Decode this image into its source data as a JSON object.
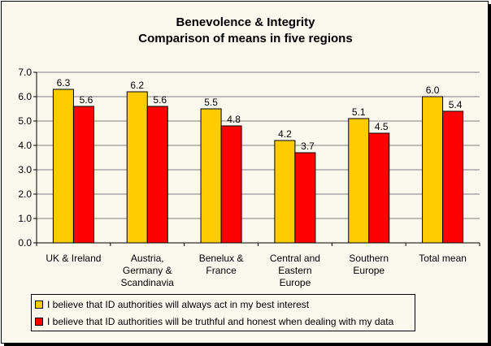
{
  "chart_data": {
    "type": "bar",
    "title_line1": "Benevolence & Integrity",
    "title_line2": "Comparison of means in five regions",
    "categories": [
      [
        "UK & Ireland"
      ],
      [
        "Austria,",
        "Germany &",
        "Scandinavia"
      ],
      [
        "Benelux &",
        "France"
      ],
      [
        "Central and",
        "Eastern",
        "Europe"
      ],
      [
        "Southern",
        "Europe"
      ],
      [
        "Total mean"
      ]
    ],
    "series": [
      {
        "name": "I believe that ID authorities will always act in my best interest",
        "color": "#ffcc00",
        "values": [
          6.3,
          6.2,
          5.5,
          4.2,
          5.1,
          6.0
        ],
        "labels": [
          "6.3",
          "6.2",
          "5.5",
          "4.2",
          "5.1",
          "6.0"
        ]
      },
      {
        "name": "I believe that ID authorities will be truthful and honest when dealing with my data",
        "color": "#ff0000",
        "values": [
          5.6,
          5.6,
          4.8,
          3.7,
          4.5,
          5.4
        ],
        "labels": [
          "5.6",
          "5.6",
          "4.8",
          "3.7",
          "4.5",
          "5.4"
        ]
      }
    ],
    "ylim": [
      0,
      7
    ],
    "yticks": [
      "0.0",
      "1.0",
      "2.0",
      "3.0",
      "4.0",
      "5.0",
      "6.0",
      "7.0"
    ],
    "grid": true,
    "legend_position": "bottom"
  }
}
